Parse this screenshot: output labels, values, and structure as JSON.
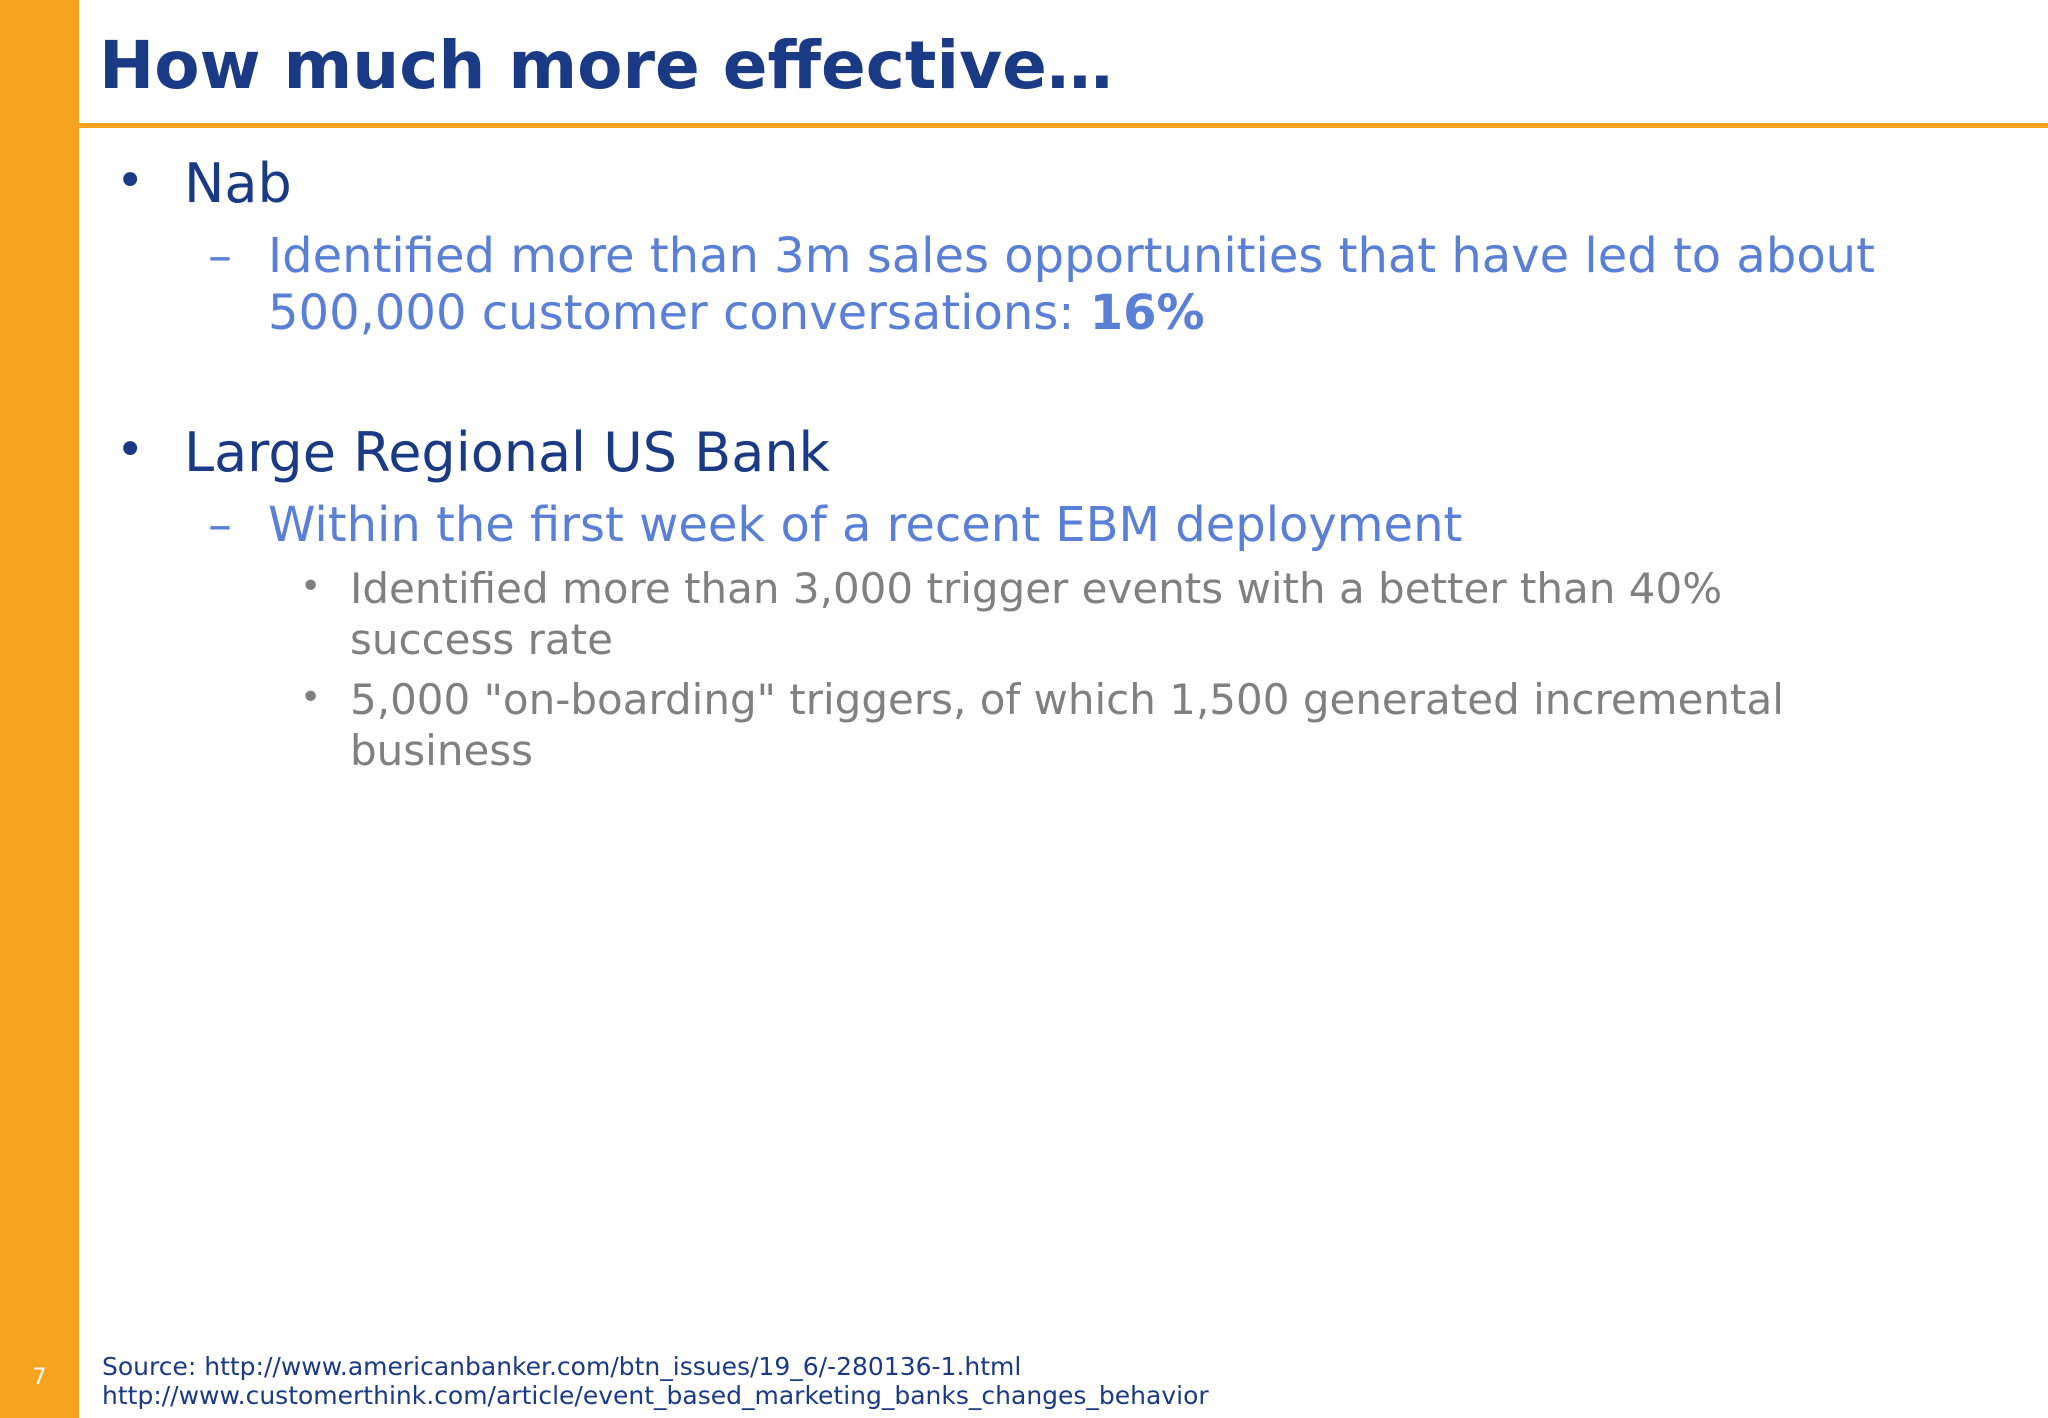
{
  "slide": {
    "page_number": "7",
    "title": "How much more effective…",
    "accent_color": "#f6a31f",
    "title_color": "#1a3a86",
    "level2_color": "#5a7fd6",
    "level3_color": "#808080"
  },
  "bullets": [
    {
      "text": "Nab",
      "sub": [
        {
          "text": "Identified more than 3m sales opportunities that have led to about 500,000 customer conversations: ",
          "emphasis": "16%"
        }
      ]
    },
    {
      "text": "Large Regional US Bank",
      "sub": [
        {
          "text": "Within the first week of a recent EBM deployment",
          "sub": [
            {
              "text": "Identified more than 3,000 trigger events with a better than 40% success rate"
            },
            {
              "text": "5,000 \"on-boarding\" triggers, of which 1,500 generated incremental business"
            }
          ]
        }
      ]
    }
  ],
  "source": {
    "line1": "Source: http://www.americanbanker.com/btn_issues/19_6/-280136-1.html",
    "line2": "http://www.customerthink.com/article/event_based_marketing_banks_changes_behavior"
  }
}
